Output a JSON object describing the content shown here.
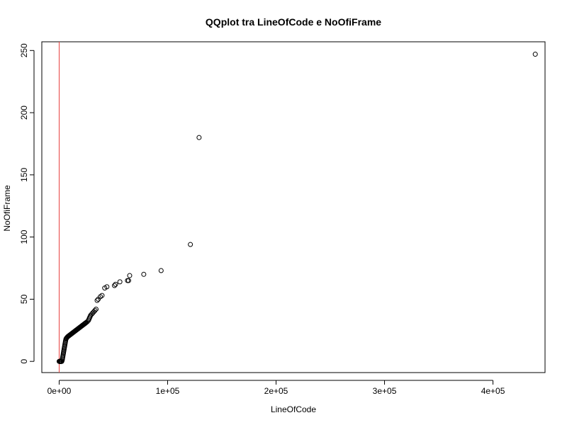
{
  "chart_data": {
    "type": "scatter",
    "title": "QQplot tra LineOfCode e NoOfiFrame",
    "xlabel": "LineOfCode",
    "ylabel": "NoOfiFrame",
    "xlim": [
      -16000,
      448000
    ],
    "ylim": [
      -9,
      257
    ],
    "x_ticks": [
      0,
      100000,
      200000,
      300000,
      400000
    ],
    "x_tick_labels": [
      "0e+00",
      "1e+05",
      "2e+05",
      "3e+05",
      "4e+05"
    ],
    "y_ticks": [
      0,
      50,
      100,
      150,
      200,
      250
    ],
    "y_tick_labels": [
      "0",
      "50",
      "100",
      "150",
      "200",
      "250"
    ],
    "reference_line": {
      "type": "vertical",
      "x": 0,
      "color": "#e8423f"
    },
    "point_color": "#000000",
    "points": [
      [
        0,
        0
      ],
      [
        150,
        0
      ],
      [
        300,
        0
      ],
      [
        450,
        0
      ],
      [
        600,
        0
      ],
      [
        800,
        0
      ],
      [
        1000,
        0
      ],
      [
        1200,
        0
      ],
      [
        1400,
        0
      ],
      [
        1600,
        0
      ],
      [
        1800,
        0
      ],
      [
        2000,
        0
      ],
      [
        2200,
        0
      ],
      [
        2400,
        0
      ],
      [
        2600,
        1
      ],
      [
        2800,
        1
      ],
      [
        3000,
        2
      ],
      [
        3200,
        3
      ],
      [
        3400,
        4
      ],
      [
        3600,
        5
      ],
      [
        3800,
        6
      ],
      [
        4000,
        7
      ],
      [
        4200,
        8
      ],
      [
        4400,
        9
      ],
      [
        4600,
        10
      ],
      [
        4800,
        11
      ],
      [
        5000,
        12
      ],
      [
        5200,
        13
      ],
      [
        5400,
        14
      ],
      [
        5600,
        15
      ],
      [
        5800,
        16
      ],
      [
        6000,
        17
      ],
      [
        6300,
        18
      ],
      [
        6600,
        18.5
      ],
      [
        7000,
        19
      ],
      [
        7500,
        19.5
      ],
      [
        8000,
        20
      ],
      [
        8500,
        20.3
      ],
      [
        9000,
        20.6
      ],
      [
        9500,
        21
      ],
      [
        10000,
        21.3
      ],
      [
        10500,
        21.6
      ],
      [
        11000,
        22
      ],
      [
        11500,
        22.3
      ],
      [
        12000,
        22.6
      ],
      [
        12500,
        23
      ],
      [
        13000,
        23.3
      ],
      [
        13500,
        23.6
      ],
      [
        14000,
        24
      ],
      [
        14500,
        24.3
      ],
      [
        15000,
        24.6
      ],
      [
        15500,
        25
      ],
      [
        16000,
        25.3
      ],
      [
        16500,
        25.6
      ],
      [
        17000,
        26
      ],
      [
        17500,
        26.3
      ],
      [
        18000,
        26.6
      ],
      [
        18500,
        27
      ],
      [
        19000,
        27.3
      ],
      [
        19500,
        27.6
      ],
      [
        20000,
        28
      ],
      [
        20500,
        28.3
      ],
      [
        21000,
        28.6
      ],
      [
        21500,
        29
      ],
      [
        22000,
        29.3
      ],
      [
        22500,
        29.6
      ],
      [
        23000,
        30
      ],
      [
        23500,
        30.3
      ],
      [
        24000,
        30.6
      ],
      [
        24500,
        31
      ],
      [
        25000,
        31.3
      ],
      [
        26000,
        32
      ],
      [
        27000,
        33
      ],
      [
        27500,
        34
      ],
      [
        28000,
        35
      ],
      [
        28500,
        36
      ],
      [
        29000,
        37
      ],
      [
        30000,
        38
      ],
      [
        31000,
        39
      ],
      [
        32000,
        40
      ],
      [
        33000,
        41
      ],
      [
        34000,
        42
      ],
      [
        35000,
        49
      ],
      [
        36000,
        50
      ],
      [
        38000,
        52
      ],
      [
        39500,
        53
      ],
      [
        42000,
        59
      ],
      [
        44000,
        60
      ],
      [
        51000,
        61
      ],
      [
        52000,
        62
      ],
      [
        56000,
        64
      ],
      [
        63000,
        65
      ],
      [
        64000,
        65
      ],
      [
        65000,
        69
      ],
      [
        78000,
        70
      ],
      [
        94000,
        73
      ],
      [
        121000,
        94
      ],
      [
        129000,
        180
      ],
      [
        439000,
        247
      ]
    ]
  }
}
